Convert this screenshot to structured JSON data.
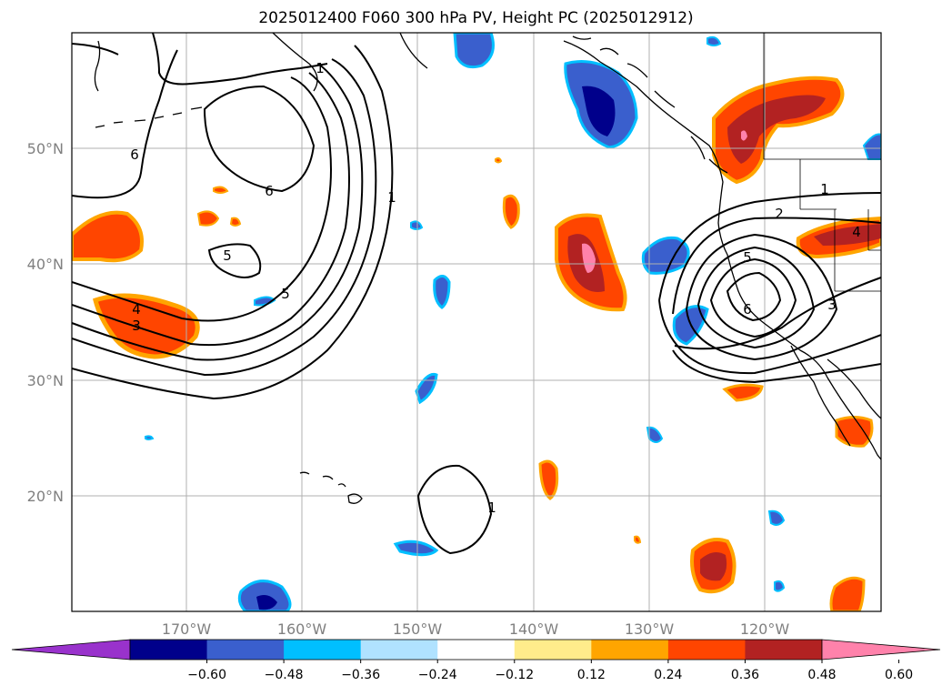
{
  "title": "2025012400 F060 300 hPa PV, Height PC (2025012912)",
  "lat_labels": [
    "50°N",
    "40°N",
    "30°N",
    "20°N"
  ],
  "lon_labels": [
    "170°W",
    "160°W",
    "150°W",
    "140°W",
    "130°W",
    "120°W"
  ],
  "colorbar": {
    "ticks": [
      "−0.60",
      "−0.48",
      "−0.36",
      "−0.24",
      "−0.12",
      "0.12",
      "0.24",
      "0.36",
      "0.48",
      "0.60"
    ],
    "colors": [
      "#9932cc",
      "#00008b",
      "#3a5fcd",
      "#00bfff",
      "#b0e2ff",
      "#ffffff",
      "#ffec8b",
      "#ffa500",
      "#ff4500",
      "#b22222",
      "#ff82ab"
    ]
  },
  "contour_labels": [
    "6",
    "6",
    "5",
    "5",
    "1",
    "4",
    "3",
    "2",
    "4",
    "1",
    "5",
    "6",
    "1",
    "3",
    "1"
  ]
}
